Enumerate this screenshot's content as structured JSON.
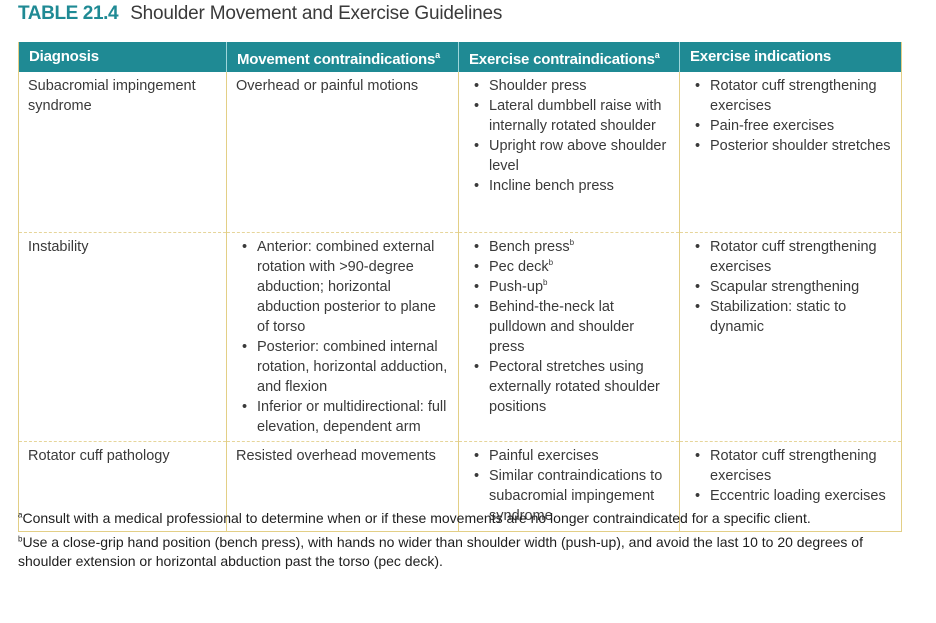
{
  "title": {
    "number": "TABLE 21.4",
    "text": "Shoulder Movement and Exercise Guidelines"
  },
  "headers": [
    "Diagnosis",
    "Movement contraindications",
    "Exercise contraindications",
    "Exercise indications"
  ],
  "header_sup": "a",
  "rows": [
    {
      "diagnosis": "Subacromial impingement syndrome",
      "movement": "Overhead or painful motions",
      "exercise_contra": [
        "Shoulder press",
        "Lateral dumbbell raise with internally rotated shoulder",
        "Upright row above shoulder level",
        "Incline bench press"
      ],
      "exercise_ind": [
        "Rotator cuff strengthening exercises",
        "Pain-free exercises",
        "Posterior shoulder stretches"
      ]
    },
    {
      "diagnosis": "Instability",
      "movement_list": [
        "Anterior: combined external rotation with >90-degree abduction; horizontal abduction posterior to plane of torso",
        "Posterior: combined internal rotation, horizontal adduction, and flexion",
        "Inferior or multidirectional: full elevation, dependent arm"
      ],
      "exercise_contra": [
        "Bench press",
        "Pec deck",
        "Push-up",
        "Behind-the-neck lat pulldown and shoulder press",
        "Pectoral stretches using externally rotated shoulder positions"
      ],
      "exercise_contra_sup": "b",
      "exercise_ind": [
        "Rotator cuff strengthening exercises",
        "Scapular strengthening",
        "Stabilization: static to dynamic"
      ]
    },
    {
      "diagnosis": "Rotator cuff pathology",
      "movement": "Resisted overhead movements",
      "exercise_contra": [
        "Painful exercises",
        "Similar contraindications to subacromial impingement syndrome"
      ],
      "exercise_ind": [
        "Rotator cuff strengthening exercises",
        "Eccentric loading exercises"
      ]
    }
  ],
  "footnotes": [
    {
      "mark": "a",
      "text": "Consult with a medical professional to determine when or if these movements are no longer contraindicated for a specific client."
    },
    {
      "mark": "b",
      "text": "Use a close-grip hand position (bench press), with hands no wider than shoulder width (push-up), and avoid the last 10 to 20 degrees of shoulder extension or horizontal abduction past the torso (pec deck)."
    }
  ],
  "colors": {
    "header_bg": "#1f8a94",
    "title_number": "#1f8a94",
    "rule": "#e3cf86"
  }
}
